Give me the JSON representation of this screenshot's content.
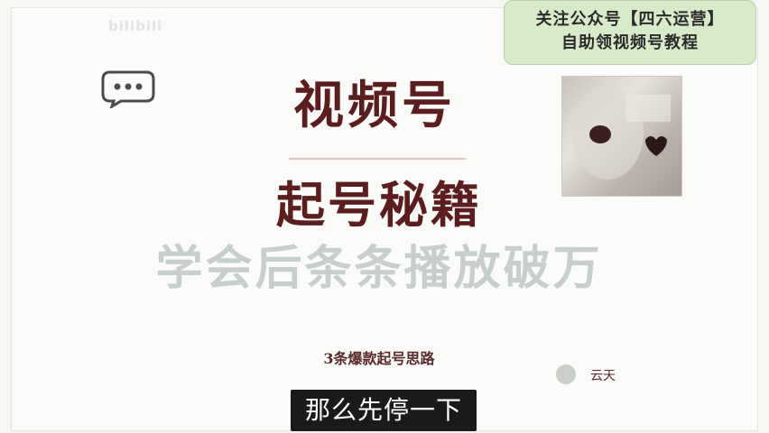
{
  "watermark": "bilibili",
  "promo": {
    "line1": "关注公众号【四六运营】",
    "line2": "自助领视频号教程"
  },
  "slide": {
    "title": "视频号",
    "subtitle": "起号秘籍",
    "tagline": "学会后条条播放破万",
    "caption": "3条爆款起号思路",
    "author": "云天"
  },
  "video_subtitle": "那么先停一下",
  "icons": {
    "chat": "chat-bubble-icon",
    "avatar": "author-avatar-icon"
  },
  "colors": {
    "title": "#5b1d1d",
    "tagline": "#c7cfcc",
    "promo_bg": "#d8ebc8",
    "subtitle_bg": "#1a1a1a"
  }
}
